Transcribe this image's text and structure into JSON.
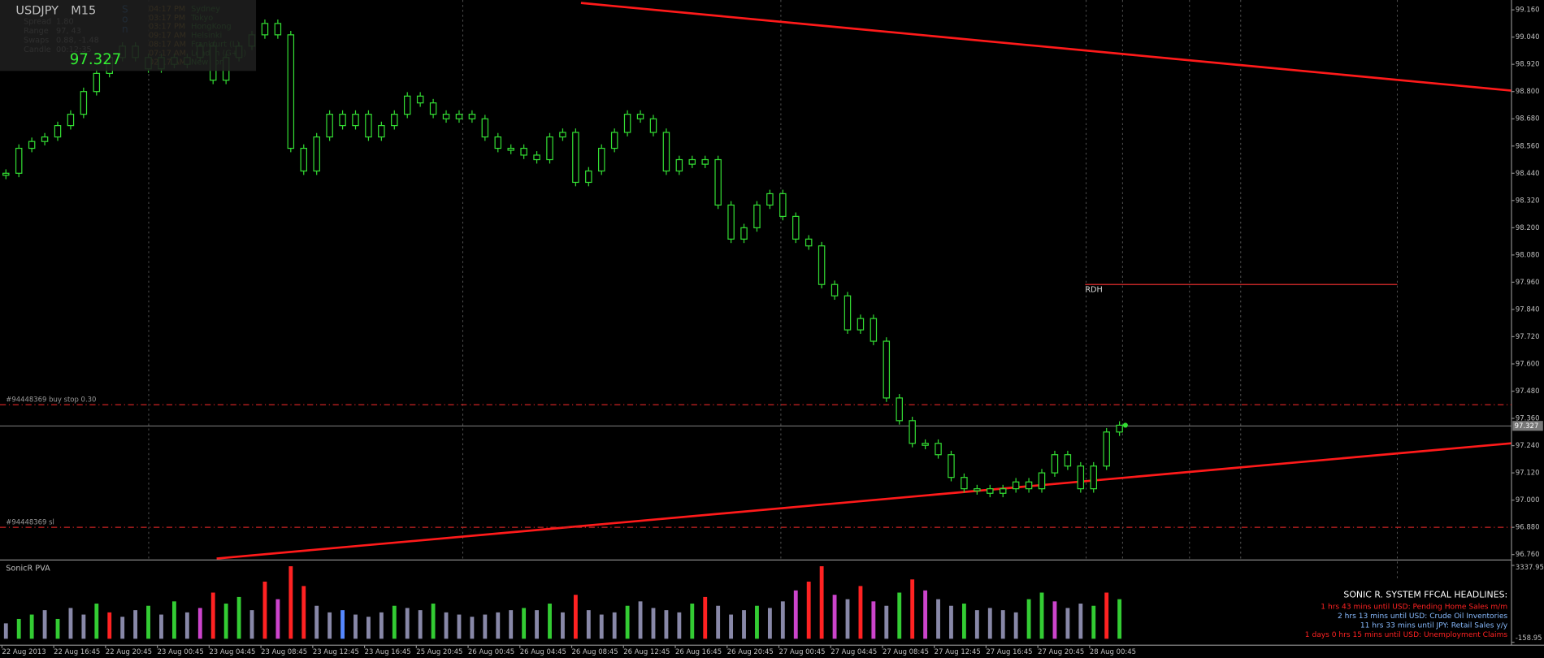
{
  "info_panel": {
    "symbol": "USDJPY",
    "timeframe": "M15",
    "rows": [
      [
        "Spread",
        "1.80"
      ],
      [
        "Range",
        "97, 43"
      ],
      [
        "Swaps",
        "0.88, -1.48"
      ],
      [
        "Candle",
        "00:12:35"
      ]
    ],
    "price": "97.327",
    "sessions": [
      [
        "04:17 PM",
        "Sydney"
      ],
      [
        "03:17 PM",
        "Tokyo"
      ],
      [
        "03:17 PM",
        "HongKong"
      ],
      [
        "09:17 AM",
        "Helsinki"
      ],
      [
        "08:17 AM",
        "Frankfurt (L)"
      ],
      [
        "07:17 AM",
        "London (G+1)"
      ],
      [
        "02:17 AM",
        "New York"
      ]
    ],
    "session_flags": [
      "S",
      "o",
      "n"
    ]
  },
  "chart": {
    "type": "candlestick",
    "closes": [
      98.44,
      98.55,
      98.58,
      98.6,
      98.65,
      98.7,
      98.8,
      98.88,
      98.95,
      99.0,
      98.95,
      98.9,
      98.95,
      98.92,
      98.95,
      99.0,
      98.85,
      98.95,
      99.0,
      99.05,
      99.1,
      99.05,
      98.55,
      98.45,
      98.6,
      98.7,
      98.65,
      98.7,
      98.6,
      98.65,
      98.7,
      98.78,
      98.75,
      98.7,
      98.68,
      98.7,
      98.68,
      98.6,
      98.55,
      98.55,
      98.52,
      98.5,
      98.6,
      98.62,
      98.4,
      98.45,
      98.55,
      98.62,
      98.7,
      98.68,
      98.62,
      98.45,
      98.5,
      98.48,
      98.5,
      98.3,
      98.15,
      98.2,
      98.3,
      98.35,
      98.25,
      98.15,
      98.12,
      97.95,
      97.9,
      97.75,
      97.8,
      97.7,
      97.45,
      97.35,
      97.25,
      97.25,
      97.2,
      97.1,
      97.05,
      97.05,
      97.03,
      97.05,
      97.08,
      97.05,
      97.12,
      97.2,
      97.15,
      97.05,
      97.15,
      97.3,
      97.33
    ],
    "color": "#33dd33",
    "ylim": [
      96.76,
      99.16
    ],
    "yticks": [
      {
        "value": 99.16,
        "label": "99.160"
      },
      {
        "value": 99.04,
        "label": "99.040"
      },
      {
        "value": 98.92,
        "label": "98.920"
      },
      {
        "value": 98.8,
        "label": "98.800"
      },
      {
        "value": 98.68,
        "label": "98.680"
      },
      {
        "value": 98.56,
        "label": "98.560"
      },
      {
        "value": 98.44,
        "label": "98.440"
      },
      {
        "value": 98.32,
        "label": "98.320"
      },
      {
        "value": 98.2,
        "label": "98.200"
      },
      {
        "value": 98.08,
        "label": "98.080"
      },
      {
        "value": 97.96,
        "label": "97.960"
      },
      {
        "value": 97.84,
        "label": "97.840"
      },
      {
        "value": 97.72,
        "label": "97.720"
      },
      {
        "value": 97.6,
        "label": "97.600"
      },
      {
        "value": 97.48,
        "label": "97.480"
      },
      {
        "value": 97.36,
        "label": "97.360"
      },
      {
        "value": 97.24,
        "label": "97.240"
      },
      {
        "value": 97.12,
        "label": "97.120"
      },
      {
        "value": 97.0,
        "label": "97.000"
      },
      {
        "value": 96.88,
        "label": "96.880"
      },
      {
        "value": 96.76,
        "label": "96.760"
      }
    ],
    "x_labels": [
      "22 Aug 2013",
      "22 Aug 16:45",
      "22 Aug 20:45",
      "23 Aug 00:45",
      "23 Aug 04:45",
      "23 Aug 08:45",
      "23 Aug 12:45",
      "23 Aug 16:45",
      "25 Aug 20:45",
      "26 Aug 00:45",
      "26 Aug 04:45",
      "26 Aug 08:45",
      "26 Aug 12:45",
      "26 Aug 16:45",
      "26 Aug 20:45",
      "27 Aug 00:45",
      "27 Aug 04:45",
      "27 Aug 08:45",
      "27 Aug 12:45",
      "27 Aug 16:45",
      "27 Aug 20:45",
      "28 Aug 00:45"
    ],
    "bid": {
      "value": 97.327,
      "label": "97.327"
    },
    "levels": [
      {
        "label": "#94448369 buy stop 0.30",
        "price": 97.42
      },
      {
        "label": "#94448369 sl",
        "price": 96.88
      }
    ],
    "rdh": {
      "label": "RDH",
      "price": 97.95
    }
  },
  "volume_panel": {
    "title": "SonicR PVA",
    "ylim": [
      -158.95,
      3337.95
    ],
    "yticks": [
      {
        "value": 3337.95,
        "label": "3337.95"
      },
      {
        "value": -158.95,
        "label": "-158.95"
      }
    ],
    "values": [
      700,
      900,
      1100,
      1300,
      900,
      1400,
      1100,
      1600,
      1200,
      1000,
      1300,
      1500,
      1100,
      1700,
      1200,
      1400,
      2100,
      1600,
      1900,
      1300,
      2600,
      1800,
      3300,
      2400,
      1500,
      1200,
      1300,
      1100,
      1000,
      1200,
      1500,
      1400,
      1300,
      1600,
      1200,
      1100,
      1000,
      1100,
      1200,
      1300,
      1400,
      1300,
      1600,
      1200,
      2000,
      1300,
      1100,
      1200,
      1500,
      1700,
      1400,
      1300,
      1200,
      1600,
      1900,
      1500,
      1100,
      1300,
      1500,
      1400,
      1700,
      2200,
      2600,
      3300,
      2000,
      1800,
      2400,
      1700,
      1500,
      2100,
      2700,
      2200,
      1800,
      1500,
      1600,
      1300,
      1400,
      1300,
      1200,
      1800,
      2100,
      1700,
      1400,
      1600,
      1500,
      2100,
      1800
    ],
    "colors": [
      "#8888a8",
      "#33cc33",
      "#33cc33",
      "#8888a8",
      "#33cc33",
      "#8888a8",
      "#8888a8",
      "#33cc33",
      "#ff2222",
      "#8888a8",
      "#8888a8",
      "#33cc33",
      "#8888a8",
      "#33cc33",
      "#8888a8",
      "#cc44cc",
      "#ff2222",
      "#33cc33",
      "#33cc33",
      "#8888a8",
      "#ff2222",
      "#cc44cc",
      "#ff2222",
      "#ff2222",
      "#8888a8",
      "#8888a8",
      "#5588ff",
      "#8888a8",
      "#8888a8",
      "#8888a8",
      "#33cc33",
      "#8888a8",
      "#8888a8",
      "#33cc33",
      "#8888a8",
      "#8888a8",
      "#8888a8",
      "#8888a8",
      "#8888a8",
      "#8888a8",
      "#33cc33",
      "#8888a8",
      "#33cc33",
      "#8888a8",
      "#ff2222",
      "#8888a8",
      "#8888a8",
      "#8888a8",
      "#33cc33",
      "#8888a8",
      "#8888a8",
      "#8888a8",
      "#8888a8",
      "#33cc33",
      "#ff2222",
      "#8888a8",
      "#8888a8",
      "#8888a8",
      "#33cc33",
      "#8888a8",
      "#8888a8",
      "#cc44cc",
      "#ff2222",
      "#ff2222",
      "#cc44cc",
      "#8888a8",
      "#ff2222",
      "#cc44cc",
      "#8888a8",
      "#33cc33",
      "#ff2222",
      "#cc44cc",
      "#8888a8",
      "#8888a8",
      "#33cc33",
      "#8888a8",
      "#8888a8",
      "#8888a8",
      "#8888a8",
      "#33cc33",
      "#33cc33",
      "#cc44cc",
      "#8888a8",
      "#8888a8",
      "#33cc33",
      "#ff2222",
      "#33cc33"
    ]
  },
  "headlines": {
    "title": "SONIC R. SYSTEM  FFCAL HEADLINES:",
    "items": [
      {
        "text": "1 hrs 43 mins until USD: Pending Home Sales m/m",
        "color": "#ff2222"
      },
      {
        "text": "2 hrs 13 mins until USD: Crude Oil Inventories",
        "color": "#88bbff"
      },
      {
        "text": "11 hrs 33 mins until JPY: Retail Sales y/y",
        "color": "#88bbff"
      },
      {
        "text": "1 days 0 hrs 15 mins until USD: Unemployment Claims",
        "color": "#ff2222"
      }
    ]
  }
}
